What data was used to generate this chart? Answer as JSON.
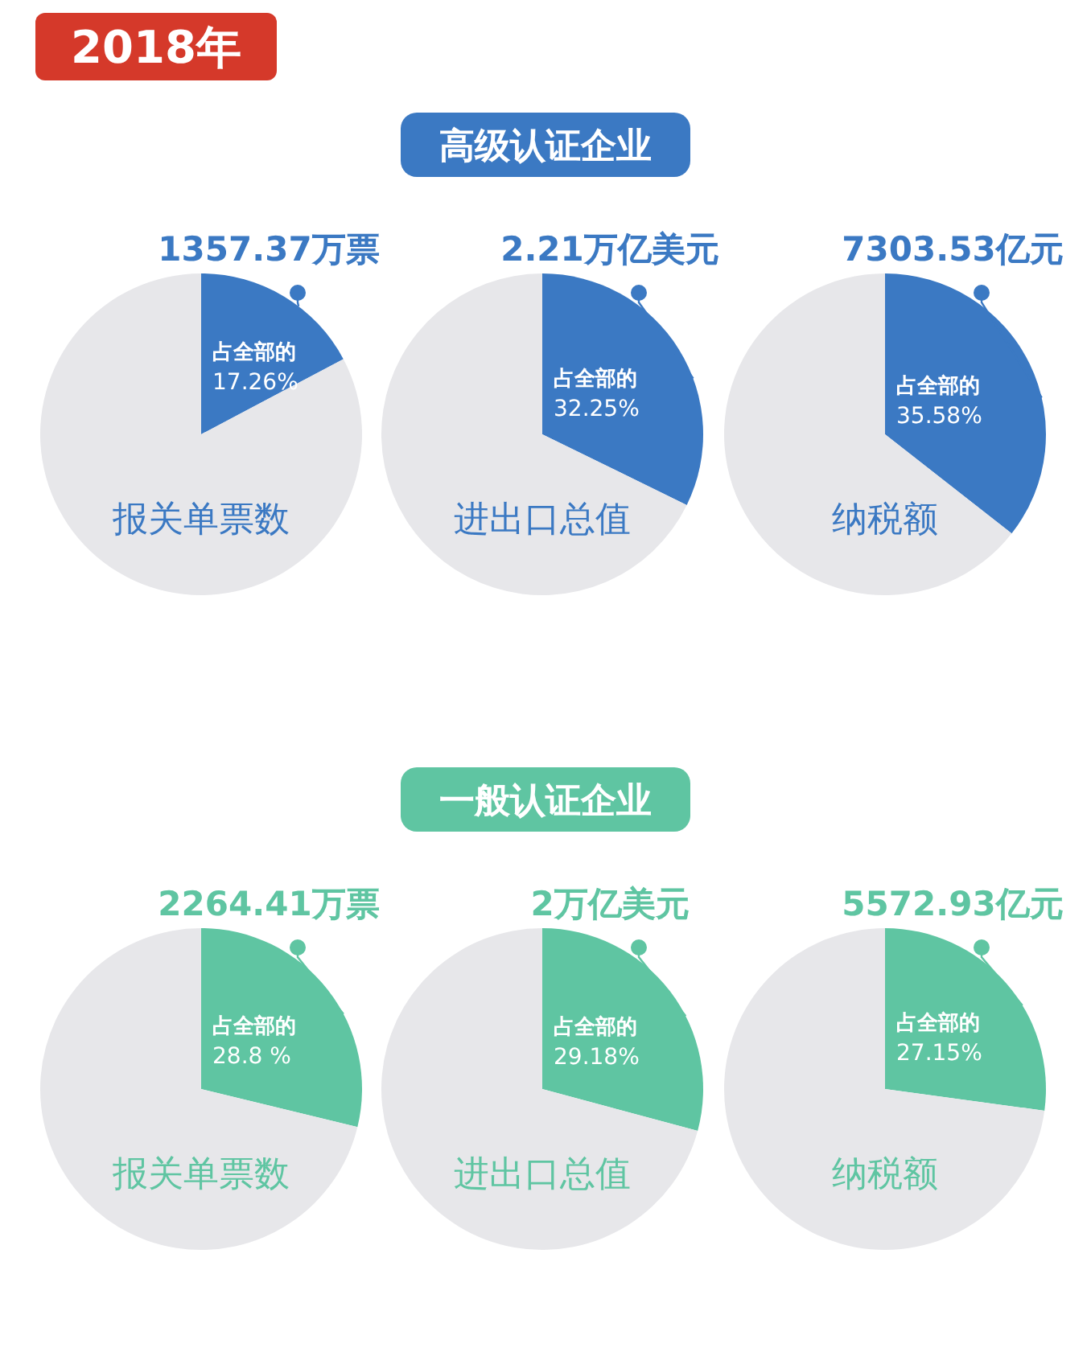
{
  "chart_data": [
    {
      "type": "other",
      "title": "2018年",
      "color": "#d5392a"
    },
    {
      "type": "other",
      "title": "高级认证企业",
      "color": "#3b79c3"
    },
    {
      "type": "pie",
      "title": "1357.37万票",
      "categories": [
        "占全部的",
        null
      ],
      "values": [
        17.26,
        82.74
      ],
      "value_labels": [
        "17.26%",
        null
      ],
      "colors": [
        "#3b79c3",
        "#e7e7ea"
      ],
      "annotations": [
        "报关单票数"
      ]
    },
    {
      "type": "pie",
      "title": "2.21万亿美元",
      "categories": [
        "占全部的",
        null
      ],
      "values": [
        32.25,
        67.75
      ],
      "value_labels": [
        "32.25%",
        null
      ],
      "colors": [
        "#3b79c3",
        "#e7e7ea"
      ],
      "annotations": [
        "进出口总值"
      ]
    },
    {
      "type": "pie",
      "title": "7303.53亿元",
      "categories": [
        "占全部的",
        null
      ],
      "values": [
        35.58,
        64.42
      ],
      "value_labels": [
        "35.58%",
        null
      ],
      "colors": [
        "#3b79c3",
        "#e7e7ea"
      ],
      "annotations": [
        "纳税额"
      ]
    },
    {
      "type": "other",
      "title": "一般认证企业",
      "color": "#5fc5a2"
    },
    {
      "type": "pie",
      "title": "2264.41万票",
      "categories": [
        "占全部的",
        null
      ],
      "values": [
        28.8,
        71.2
      ],
      "value_labels": [
        "28.8 %",
        null
      ],
      "colors": [
        "#5fc5a2",
        "#e7e7ea"
      ],
      "annotations": [
        "报关单票数"
      ]
    },
    {
      "type": "pie",
      "title": "2万亿美元",
      "categories": [
        "占全部的",
        null
      ],
      "values": [
        29.18,
        70.82
      ],
      "value_labels": [
        "29.18%",
        null
      ],
      "colors": [
        "#5fc5a2",
        "#e7e7ea"
      ],
      "annotations": [
        "进出口总值"
      ]
    },
    {
      "type": "pie",
      "title": "5572.93亿元",
      "categories": [
        "占全部的",
        null
      ],
      "values": [
        27.15,
        72.85
      ],
      "value_labels": [
        "27.15%",
        null
      ],
      "colors": [
        "#5fc5a2",
        "#e7e7ea"
      ],
      "annotations": [
        "纳税额"
      ]
    }
  ]
}
